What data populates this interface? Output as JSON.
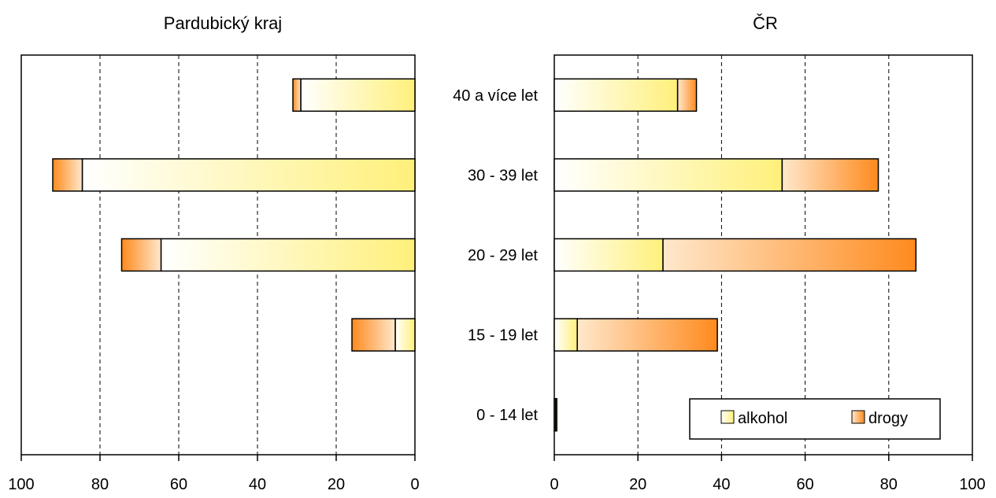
{
  "chart_data": [
    {
      "type": "bar",
      "orientation": "horizontal-stacked",
      "title": "Pardubický kraj",
      "x_direction": "reversed",
      "xlim": [
        0,
        100
      ],
      "xticks": [
        "100",
        "80",
        "60",
        "40",
        "20",
        "0"
      ],
      "grid": "vertical-dashed",
      "categories": [
        "40 a více let",
        "30 - 39 let",
        "20 - 29 let",
        "15 - 19 let",
        "0 - 14 let"
      ],
      "series": [
        {
          "name": "alkohol",
          "values": [
            29,
            84.5,
            64.5,
            5,
            0
          ]
        },
        {
          "name": "drogy",
          "values": [
            2,
            7.5,
            10,
            11,
            0
          ]
        }
      ]
    },
    {
      "type": "bar",
      "orientation": "horizontal-stacked",
      "title": "ČR",
      "xlim": [
        0,
        100
      ],
      "xticks": [
        "0",
        "20",
        "40",
        "60",
        "80",
        "100"
      ],
      "grid": "vertical-dashed",
      "legend_position": "bottom-right",
      "categories": [
        "40 a více let",
        "30 - 39 let",
        "20 - 29 let",
        "15 - 19 let",
        "0 - 14 let"
      ],
      "series": [
        {
          "name": "alkohol",
          "values": [
            29.5,
            54.5,
            26,
            5.5,
            0.3
          ]
        },
        {
          "name": "drogy",
          "values": [
            4.5,
            23,
            60.5,
            33.5,
            0.3
          ]
        }
      ]
    }
  ],
  "legend": {
    "items": [
      "alkohol",
      "drogy"
    ]
  }
}
